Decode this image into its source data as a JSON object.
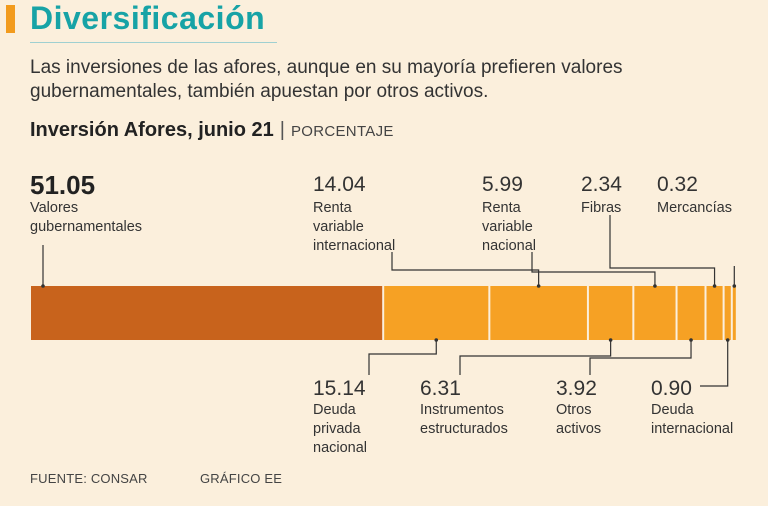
{
  "header": {
    "title": "Diversificación",
    "subtitle": "Las inversiones de las afores, aunque en su mayoría prefieren valores gubernamentales, también apuestan por otros activos."
  },
  "chart_data": {
    "type": "bar",
    "orientation": "horizontal-stacked",
    "title": "Inversión Afores, junio 21",
    "unit": "PORCENTAJE",
    "xlabel": "",
    "ylabel": "",
    "segments": [
      {
        "name": "Valores gubernamentales",
        "value": 51.05,
        "value_label": "51.05",
        "label_lines": [
          "Valores",
          "gubernamentales"
        ],
        "label_position": "top",
        "emphasis": true
      },
      {
        "name": "Deuda privada nacional",
        "value": 15.14,
        "value_label": "15.14",
        "label_lines": [
          "Deuda",
          "privada",
          "nacional"
        ],
        "label_position": "bottom"
      },
      {
        "name": "Renta variable internacional",
        "value": 14.04,
        "value_label": "14.04",
        "label_lines": [
          "Renta",
          "variable",
          "internacional"
        ],
        "label_position": "top"
      },
      {
        "name": "Instrumentos estructurados",
        "value": 6.31,
        "value_label": "6.31",
        "label_lines": [
          "Instrumentos",
          "estructurados"
        ],
        "label_position": "bottom"
      },
      {
        "name": "Renta variable nacional",
        "value": 5.99,
        "value_label": "5.99",
        "label_lines": [
          "Renta",
          "variable",
          "nacional"
        ],
        "label_position": "top"
      },
      {
        "name": "Otros activos",
        "value": 3.92,
        "value_label": "3.92",
        "label_lines": [
          "Otros",
          "activos"
        ],
        "label_position": "bottom"
      },
      {
        "name": "Fibras",
        "value": 2.34,
        "value_label": "2.34",
        "label_lines": [
          "Fibras"
        ],
        "label_position": "top"
      },
      {
        "name": "Deuda internacional",
        "value": 0.9,
        "value_label": "0.90",
        "label_lines": [
          "Deuda",
          "internacional"
        ],
        "label_position": "bottom"
      },
      {
        "name": "Mercancías",
        "value": 0.32,
        "value_label": "0.32",
        "label_lines": [
          "Mercancías"
        ],
        "label_position": "top"
      }
    ],
    "colors": {
      "primary": "#c8631c",
      "others": "#f6a124",
      "separator": "#ffffff",
      "leader": "#333333"
    }
  },
  "footer": {
    "source": "FUENTE: CONSAR",
    "credit": "GRÁFICO EE"
  }
}
